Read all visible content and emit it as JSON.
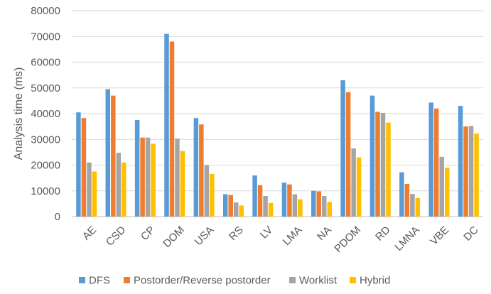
{
  "chart_data": {
    "type": "bar",
    "title": "",
    "xlabel": "",
    "ylabel": "Analysis time (ms)",
    "ylim": [
      0,
      80000
    ],
    "yticks": [
      0,
      10000,
      20000,
      30000,
      40000,
      50000,
      60000,
      70000,
      80000
    ],
    "grid": true,
    "legend_position": "bottom",
    "categories": [
      "AE",
      "CSD",
      "CP",
      "DOM",
      "USA",
      "RS",
      "LV",
      "LMA",
      "NA",
      "PDOM",
      "RD",
      "LMNA",
      "VBE",
      "DC"
    ],
    "series": [
      {
        "name": "DFS",
        "color": "#5b9bd5",
        "values": [
          40500,
          49500,
          37500,
          71000,
          38300,
          8700,
          16000,
          13200,
          10000,
          53000,
          47000,
          17200,
          44300,
          43000
        ]
      },
      {
        "name": "Postorder/Reverse postorder",
        "color": "#ed7d31",
        "values": [
          38300,
          47000,
          30700,
          68000,
          35800,
          8400,
          12200,
          12500,
          9800,
          48300,
          40700,
          12700,
          42000,
          35000
        ]
      },
      {
        "name": "Worklist",
        "color": "#a5a5a5",
        "values": [
          21000,
          24800,
          30700,
          30300,
          20000,
          5500,
          8000,
          8700,
          8000,
          26500,
          40300,
          8800,
          23200,
          35200
        ]
      },
      {
        "name": "Hybrid",
        "color": "#ffc000",
        "values": [
          17500,
          21000,
          28300,
          25500,
          16600,
          4300,
          5300,
          6700,
          5700,
          23000,
          36500,
          7200,
          19000,
          32300
        ]
      }
    ]
  }
}
